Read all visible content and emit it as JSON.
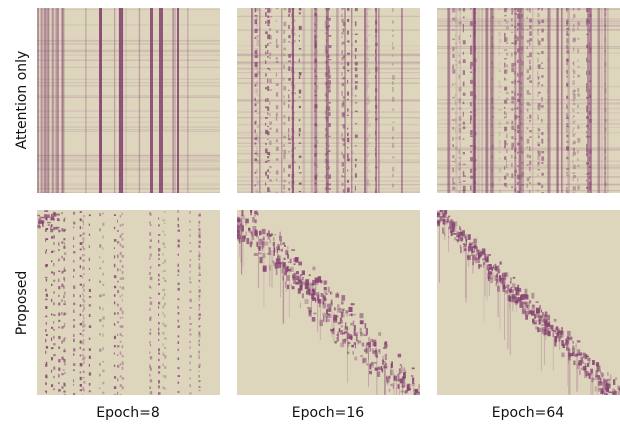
{
  "row_labels": [
    "Attention only",
    "Proposed"
  ],
  "column_labels": [
    "Epoch=8",
    "Epoch=16",
    "Epoch=64"
  ]
}
